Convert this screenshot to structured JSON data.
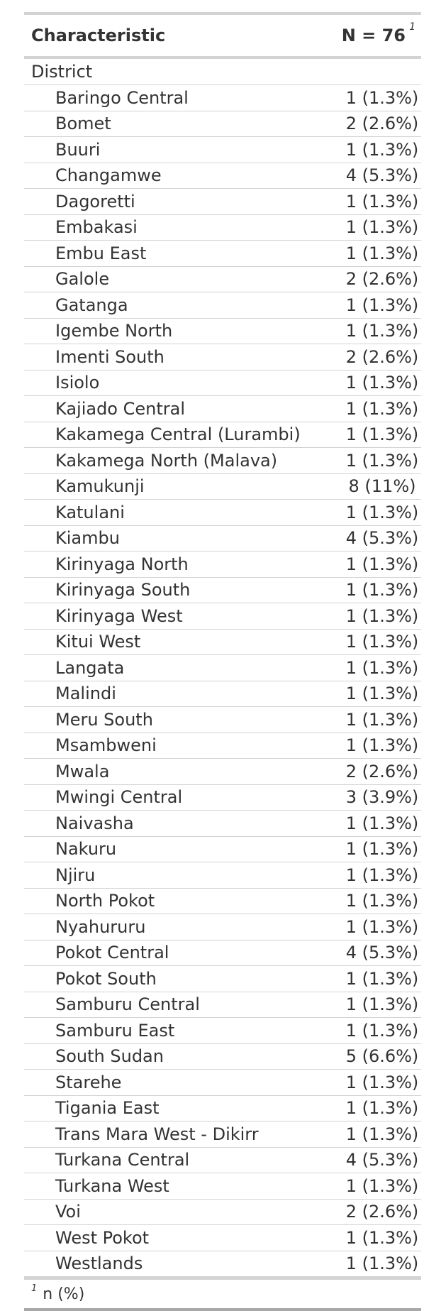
{
  "table": {
    "header": {
      "characteristic": "Characteristic",
      "n_label": "N = 76",
      "n_footnote_mark": "1"
    },
    "group_label": "District",
    "rows": [
      {
        "label": "Baringo Central",
        "value": "1 (1.3%)"
      },
      {
        "label": "Bomet",
        "value": "2 (2.6%)"
      },
      {
        "label": "Buuri",
        "value": "1 (1.3%)"
      },
      {
        "label": "Changamwe",
        "value": "4 (5.3%)"
      },
      {
        "label": "Dagoretti",
        "value": "1 (1.3%)"
      },
      {
        "label": "Embakasi",
        "value": "1 (1.3%)"
      },
      {
        "label": "Embu East",
        "value": "1 (1.3%)"
      },
      {
        "label": "Galole",
        "value": "2 (2.6%)"
      },
      {
        "label": "Gatanga",
        "value": "1 (1.3%)"
      },
      {
        "label": "Igembe North",
        "value": "1 (1.3%)"
      },
      {
        "label": "Imenti South",
        "value": "2 (2.6%)"
      },
      {
        "label": "Isiolo",
        "value": "1 (1.3%)"
      },
      {
        "label": "Kajiado Central",
        "value": "1 (1.3%)"
      },
      {
        "label": "Kakamega Central (Lurambi)",
        "value": "1 (1.3%)"
      },
      {
        "label": "Kakamega North (Malava)",
        "value": "1 (1.3%)"
      },
      {
        "label": "Kamukunji",
        "value": "8 (11%)"
      },
      {
        "label": "Katulani",
        "value": "1 (1.3%)"
      },
      {
        "label": "Kiambu",
        "value": "4 (5.3%)"
      },
      {
        "label": "Kirinyaga North",
        "value": "1 (1.3%)"
      },
      {
        "label": "Kirinyaga South",
        "value": "1 (1.3%)"
      },
      {
        "label": "Kirinyaga West",
        "value": "1 (1.3%)"
      },
      {
        "label": "Kitui West",
        "value": "1 (1.3%)"
      },
      {
        "label": "Langata",
        "value": "1 (1.3%)"
      },
      {
        "label": "Malindi",
        "value": "1 (1.3%)"
      },
      {
        "label": "Meru South",
        "value": "1 (1.3%)"
      },
      {
        "label": "Msambweni",
        "value": "1 (1.3%)"
      },
      {
        "label": "Mwala",
        "value": "2 (2.6%)"
      },
      {
        "label": "Mwingi Central",
        "value": "3 (3.9%)"
      },
      {
        "label": "Naivasha",
        "value": "1 (1.3%)"
      },
      {
        "label": "Nakuru",
        "value": "1 (1.3%)"
      },
      {
        "label": "Njiru",
        "value": "1 (1.3%)"
      },
      {
        "label": "North Pokot",
        "value": "1 (1.3%)"
      },
      {
        "label": "Nyahururu",
        "value": "1 (1.3%)"
      },
      {
        "label": "Pokot Central",
        "value": "4 (5.3%)"
      },
      {
        "label": "Pokot South",
        "value": "1 (1.3%)"
      },
      {
        "label": "Samburu Central",
        "value": "1 (1.3%)"
      },
      {
        "label": "Samburu East",
        "value": "1 (1.3%)"
      },
      {
        "label": "South Sudan",
        "value": "5 (6.6%)"
      },
      {
        "label": "Starehe",
        "value": "1 (1.3%)"
      },
      {
        "label": "Tigania East",
        "value": "1 (1.3%)"
      },
      {
        "label": "Trans Mara West - Dikirr",
        "value": "1 (1.3%)"
      },
      {
        "label": "Turkana Central",
        "value": "4 (5.3%)"
      },
      {
        "label": "Turkana West",
        "value": "1 (1.3%)"
      },
      {
        "label": "Voi",
        "value": "2 (2.6%)"
      },
      {
        "label": "West Pokot",
        "value": "1 (1.3%)"
      },
      {
        "label": "Westlands",
        "value": "1 (1.3%)"
      }
    ],
    "footnote": {
      "mark": "1",
      "text": "n (%)"
    }
  }
}
